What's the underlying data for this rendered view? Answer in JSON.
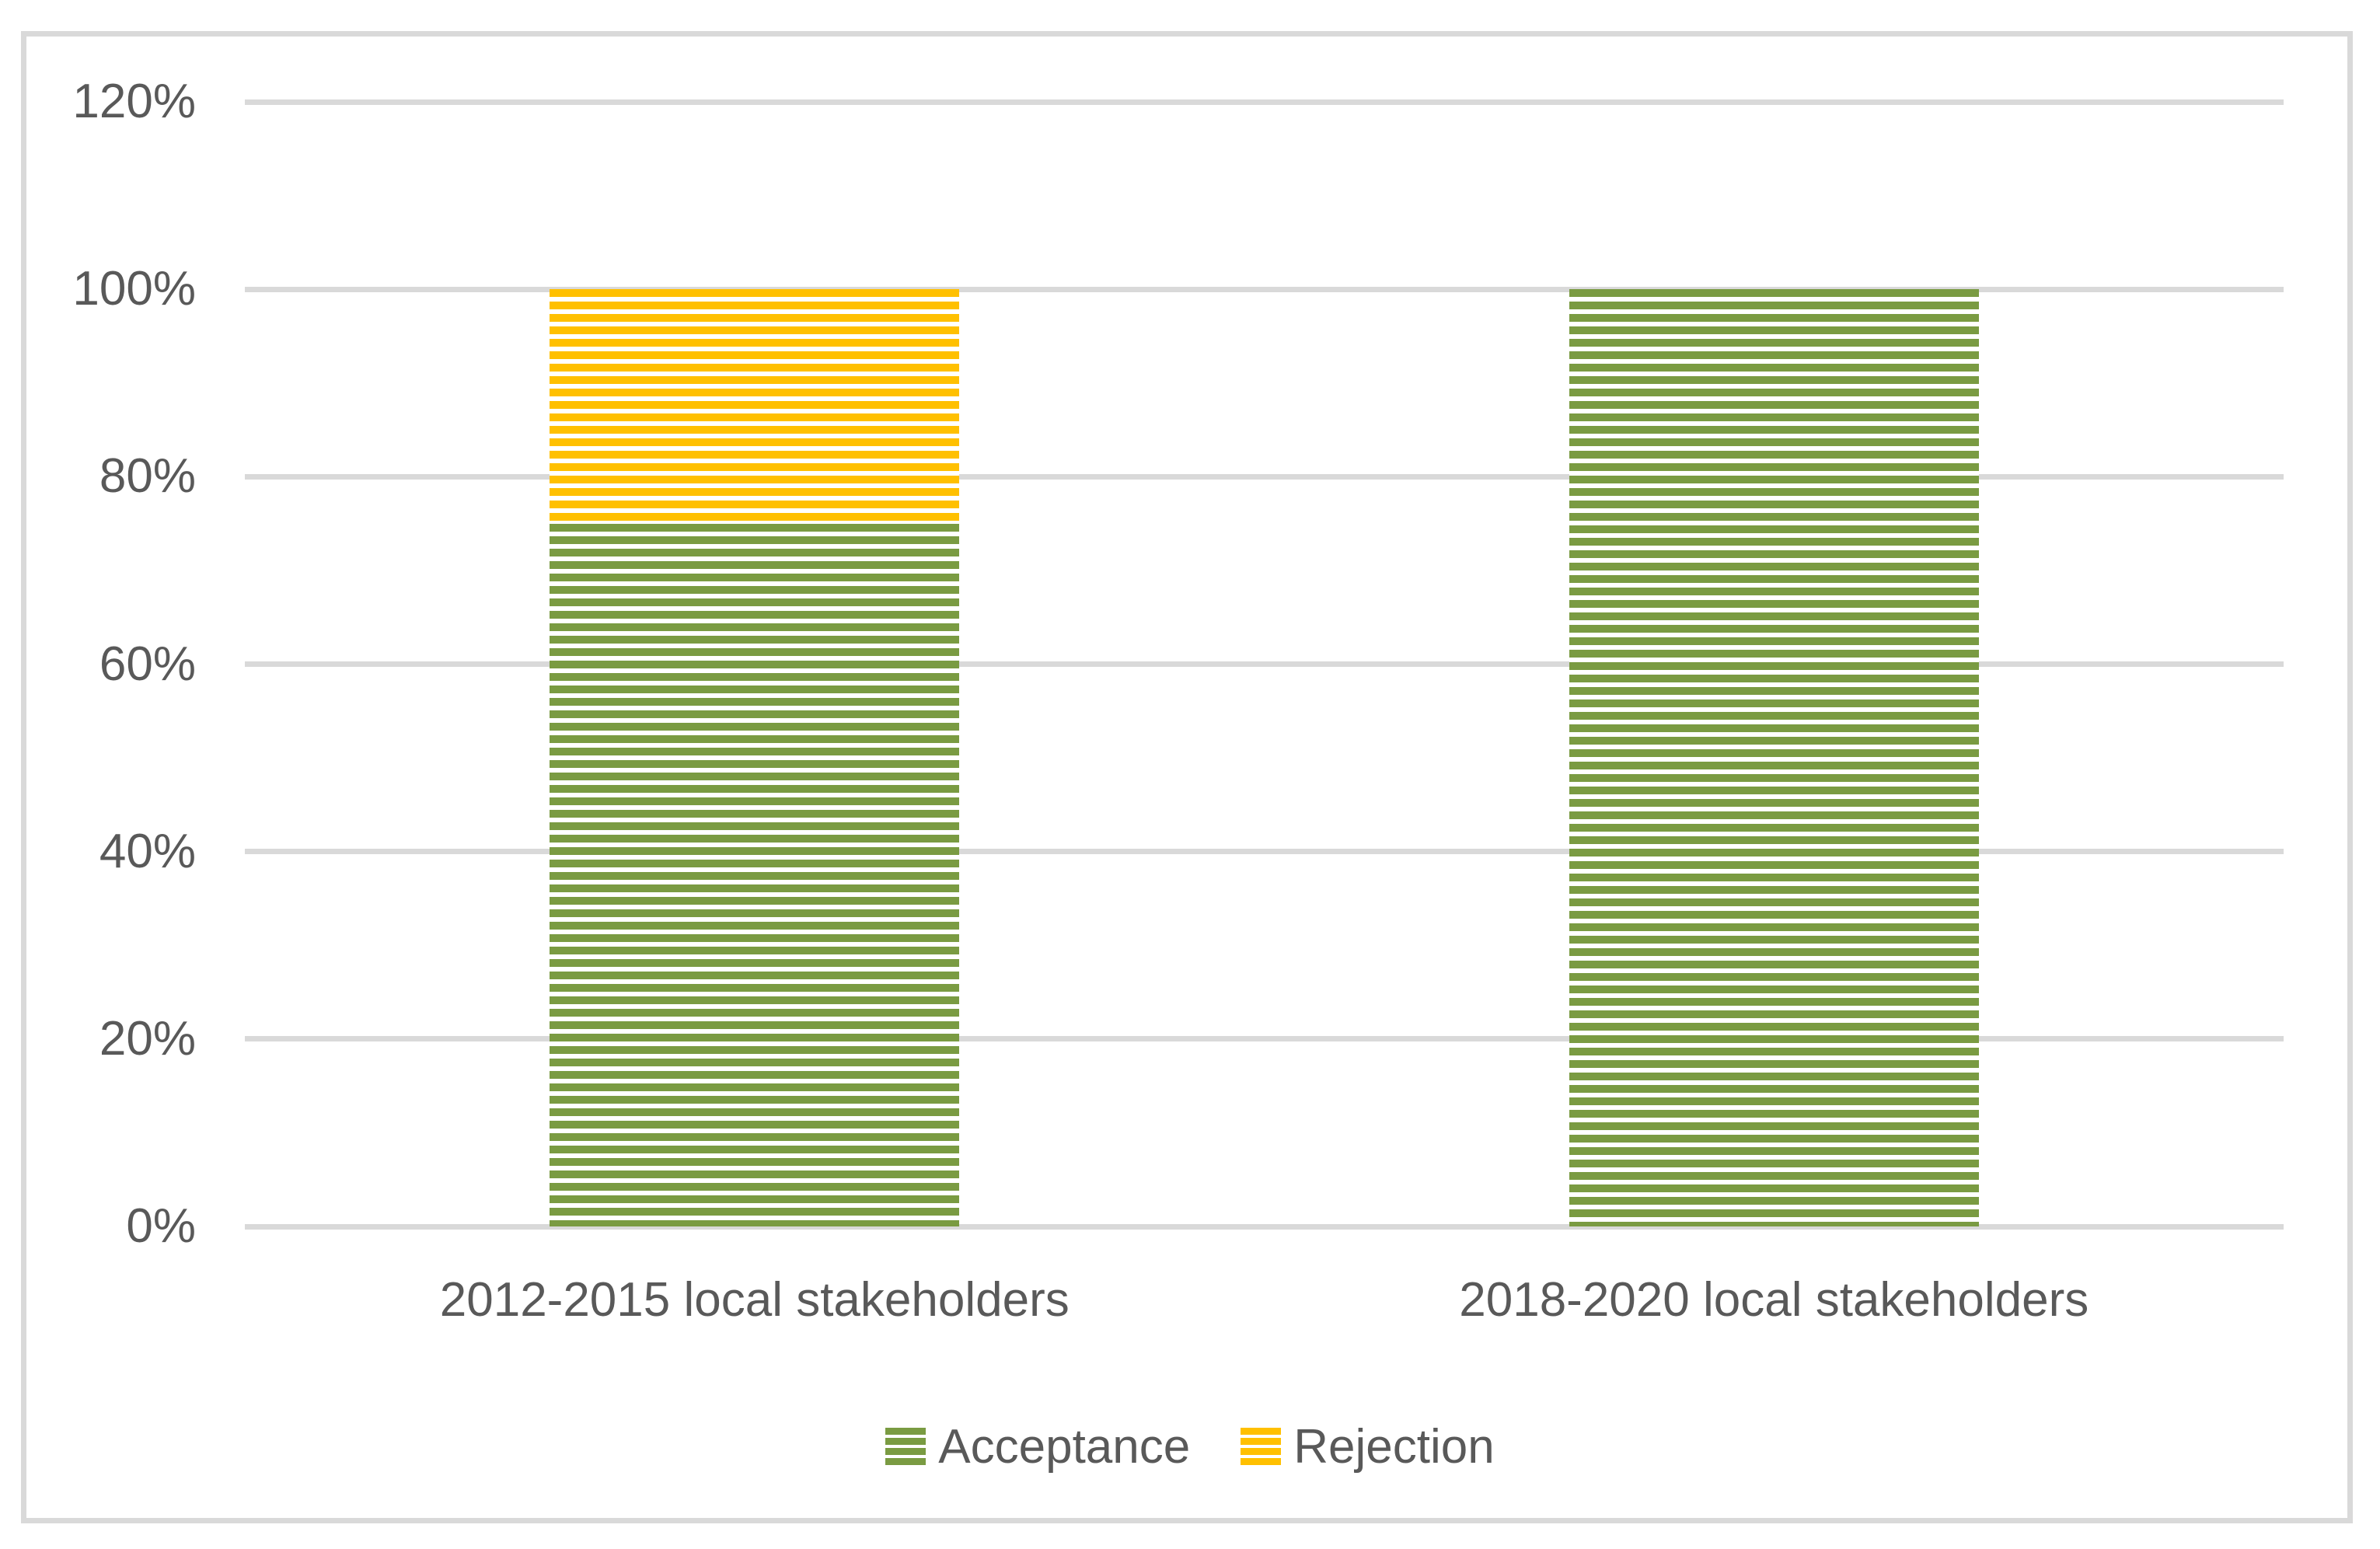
{
  "chart_data": {
    "type": "bar",
    "variant": "stacked-column-percent",
    "title": "",
    "xlabel": "",
    "ylabel": "",
    "categories": [
      "2012-2015 local stakeholders",
      "2018-2020 local stakeholders"
    ],
    "series": [
      {
        "name": "Acceptance",
        "values": [
          75,
          100
        ],
        "color": "#7A9B42",
        "pattern": "horizontal-stripes"
      },
      {
        "name": "Rejection",
        "values": [
          25,
          0
        ],
        "color": "#FFC000",
        "pattern": "horizontal-stripes"
      }
    ],
    "ylim": [
      0,
      120
    ],
    "yticks": [
      0,
      20,
      40,
      60,
      80,
      100,
      120
    ],
    "ytick_labels": [
      "0%",
      "20%",
      "40%",
      "60%",
      "80%",
      "100%",
      "120%"
    ],
    "grid": true,
    "legend_position": "bottom"
  },
  "legend": {
    "items": [
      {
        "label": "Acceptance",
        "swatch": "green-striped"
      },
      {
        "label": "Rejection",
        "swatch": "yellow-striped"
      }
    ]
  },
  "colors": {
    "acceptance_green": "#7A9B42",
    "rejection_yellow": "#FFC000",
    "gridline_gray": "#D9D9D9",
    "frame_border_gray": "#D9D9D9",
    "text_gray": "#595959",
    "background": "#FFFFFF"
  }
}
